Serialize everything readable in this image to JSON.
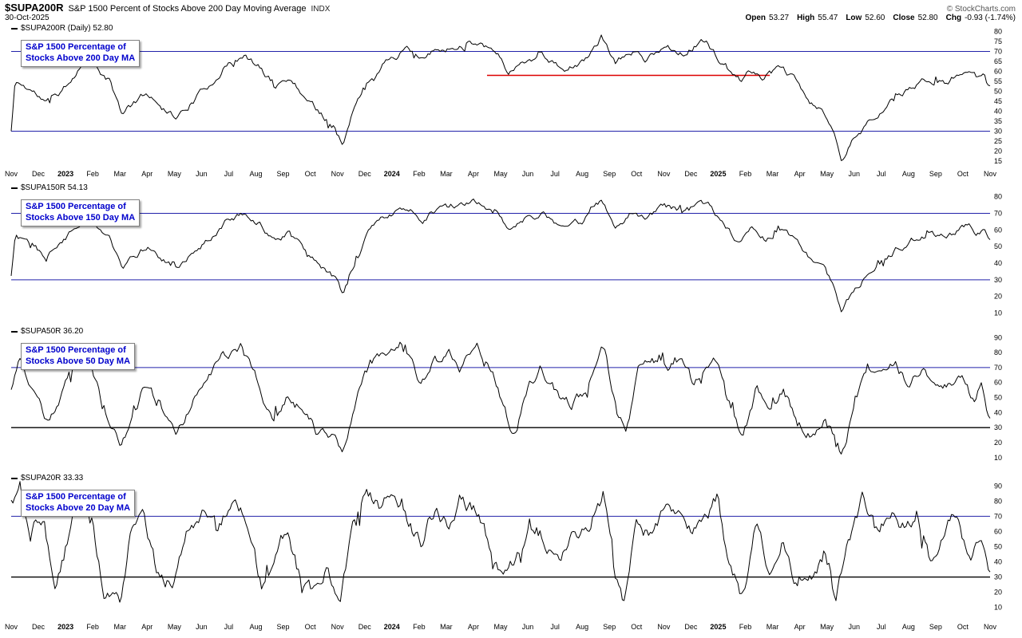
{
  "header": {
    "symbol": "$SUPA200R",
    "title": "S&P 1500 Percent of Stocks Above 200 Day Moving Average",
    "exchange": "INDX",
    "copyright": "© StockCharts.com",
    "date": "30-Oct-2025",
    "quote": {
      "open_label": "Open",
      "open": "53.27",
      "high_label": "High",
      "high": "55.47",
      "low_label": "Low",
      "low": "52.60",
      "close_label": "Close",
      "close": "52.80",
      "chg_label": "Chg",
      "chg": "-0.93 (-1.74%)"
    }
  },
  "axis": {
    "months": [
      "Nov",
      "Dec",
      "2023",
      "Feb",
      "Mar",
      "Apr",
      "May",
      "Jun",
      "Jul",
      "Aug",
      "Sep",
      "Oct",
      "Nov",
      "Dec",
      "2024",
      "Feb",
      "Mar",
      "Apr",
      "May",
      "Jun",
      "Jul",
      "Aug",
      "Sep",
      "Oct",
      "Nov",
      "Dec",
      "2025",
      "Feb",
      "Mar",
      "Apr",
      "May",
      "Jun",
      "Jul",
      "Aug",
      "Sep",
      "Oct",
      "Nov"
    ],
    "year_indices": [
      2,
      14,
      26
    ],
    "x_range": [
      "Nov-2022",
      "Nov-2025"
    ]
  },
  "chart_data": [
    {
      "type": "line",
      "id": "supa200r",
      "label": "$SUPA200R (Daily) 52.80",
      "annotation": [
        "S&P 1500 Percentage of",
        "Stocks Above 200 Day MA"
      ],
      "close": 52.8,
      "ylim": [
        13,
        83
      ],
      "yticks": [
        80,
        75,
        70,
        65,
        60,
        55,
        50,
        45,
        40,
        35,
        30,
        25,
        20,
        15
      ],
      "gridlines": [
        {
          "value": 70,
          "color": "#2222aa",
          "width": 1
        },
        {
          "value": 30,
          "color": "#2222aa",
          "width": 1
        }
      ],
      "red_line": {
        "value": 58,
        "x_start_month": 17.5,
        "x_end_month": 27.9,
        "color": "#dd0000"
      },
      "line_color": "#000000",
      "noise_amp": 2.6,
      "seed": 11,
      "anchors": [
        [
          0,
          30
        ],
        [
          0.15,
          55
        ],
        [
          0.8,
          50
        ],
        [
          1.3,
          44
        ],
        [
          1.8,
          50
        ],
        [
          2.6,
          63
        ],
        [
          2.9,
          69
        ],
        [
          3.2,
          60
        ],
        [
          3.6,
          55
        ],
        [
          4.1,
          38
        ],
        [
          4.5,
          44
        ],
        [
          5.0,
          49
        ],
        [
          5.5,
          44
        ],
        [
          6.1,
          37
        ],
        [
          6.6,
          44
        ],
        [
          7.2,
          52
        ],
        [
          7.9,
          63
        ],
        [
          8.6,
          67
        ],
        [
          9.2,
          61
        ],
        [
          9.7,
          53
        ],
        [
          10.2,
          57
        ],
        [
          10.8,
          48
        ],
        [
          11.3,
          40
        ],
        [
          11.9,
          33
        ],
        [
          12.2,
          23
        ],
        [
          12.6,
          40
        ],
        [
          13.1,
          55
        ],
        [
          13.9,
          67
        ],
        [
          14.6,
          71
        ],
        [
          15.1,
          65
        ],
        [
          15.6,
          70
        ],
        [
          16.4,
          73
        ],
        [
          17.2,
          75
        ],
        [
          17.8,
          71
        ],
        [
          18.3,
          60
        ],
        [
          18.9,
          65
        ],
        [
          19.5,
          69
        ],
        [
          20.3,
          61
        ],
        [
          21.0,
          64
        ],
        [
          21.7,
          77
        ],
        [
          22.2,
          64
        ],
        [
          22.9,
          71
        ],
        [
          23.4,
          66
        ],
        [
          24.0,
          73
        ],
        [
          24.7,
          70
        ],
        [
          25.3,
          74
        ],
        [
          25.6,
          75
        ],
        [
          26.2,
          63
        ],
        [
          26.8,
          55
        ],
        [
          27.2,
          61
        ],
        [
          27.7,
          57
        ],
        [
          28.2,
          61
        ],
        [
          28.8,
          56
        ],
        [
          29.4,
          44
        ],
        [
          29.9,
          39
        ],
        [
          30.2,
          31
        ],
        [
          30.55,
          16
        ],
        [
          30.9,
          24
        ],
        [
          31.4,
          33
        ],
        [
          31.9,
          40
        ],
        [
          32.6,
          47
        ],
        [
          33.3,
          53
        ],
        [
          33.9,
          57
        ],
        [
          34.4,
          54
        ],
        [
          34.9,
          59
        ],
        [
          35.2,
          62
        ],
        [
          35.5,
          57
        ],
        [
          35.8,
          60
        ],
        [
          36,
          52.8
        ]
      ]
    },
    {
      "type": "line",
      "id": "supa150r",
      "label": "$SUPA150R 54.13",
      "annotation": [
        "S&P 1500 Percentage of",
        "Stocks Above 150 Day MA"
      ],
      "close": 54.13,
      "ylim": [
        5,
        87
      ],
      "yticks": [
        80,
        70,
        60,
        50,
        40,
        30,
        20,
        10
      ],
      "gridlines": [
        {
          "value": 70,
          "color": "#2222aa",
          "width": 1
        },
        {
          "value": 30,
          "color": "#2222aa",
          "width": 1
        }
      ],
      "line_color": "#000000",
      "noise_amp": 3.0,
      "seed": 22,
      "anchors": [
        [
          0,
          32
        ],
        [
          0.15,
          58
        ],
        [
          0.8,
          52
        ],
        [
          1.3,
          45
        ],
        [
          1.8,
          52
        ],
        [
          2.6,
          66
        ],
        [
          2.9,
          71
        ],
        [
          3.2,
          62
        ],
        [
          3.6,
          57
        ],
        [
          4.1,
          37
        ],
        [
          4.5,
          44
        ],
        [
          5.0,
          50
        ],
        [
          5.5,
          44
        ],
        [
          6.1,
          36
        ],
        [
          6.6,
          44
        ],
        [
          7.2,
          54
        ],
        [
          7.9,
          66
        ],
        [
          8.6,
          70
        ],
        [
          9.2,
          63
        ],
        [
          9.7,
          53
        ],
        [
          10.2,
          58
        ],
        [
          10.8,
          47
        ],
        [
          11.3,
          38
        ],
        [
          11.9,
          30
        ],
        [
          12.2,
          20
        ],
        [
          12.6,
          39
        ],
        [
          13.1,
          57
        ],
        [
          13.9,
          70
        ],
        [
          14.6,
          74
        ],
        [
          15.1,
          66
        ],
        [
          15.6,
          71
        ],
        [
          16.4,
          75
        ],
        [
          17.2,
          77
        ],
        [
          17.8,
          72
        ],
        [
          18.3,
          60
        ],
        [
          18.9,
          66
        ],
        [
          19.5,
          70
        ],
        [
          20.3,
          61
        ],
        [
          21.0,
          65
        ],
        [
          21.7,
          79
        ],
        [
          22.2,
          63
        ],
        [
          22.9,
          72
        ],
        [
          23.4,
          66
        ],
        [
          24.0,
          74
        ],
        [
          24.7,
          71
        ],
        [
          25.3,
          75
        ],
        [
          25.6,
          76
        ],
        [
          26.2,
          62
        ],
        [
          26.8,
          53
        ],
        [
          27.2,
          60
        ],
        [
          27.7,
          55
        ],
        [
          28.2,
          60
        ],
        [
          28.8,
          54
        ],
        [
          29.4,
          41
        ],
        [
          29.9,
          36
        ],
        [
          30.2,
          27
        ],
        [
          30.55,
          11
        ],
        [
          30.9,
          21
        ],
        [
          31.4,
          32
        ],
        [
          31.9,
          41
        ],
        [
          32.6,
          49
        ],
        [
          33.3,
          55
        ],
        [
          33.9,
          59
        ],
        [
          34.4,
          55
        ],
        [
          34.9,
          61
        ],
        [
          35.2,
          64
        ],
        [
          35.5,
          58
        ],
        [
          35.8,
          61
        ],
        [
          36,
          54.13
        ]
      ]
    },
    {
      "type": "line",
      "id": "supa50r",
      "label": "$SUPA50R 36.20",
      "annotation": [
        "S&P 1500 Percentage of",
        "Stocks Above 50 Day MA"
      ],
      "close": 36.2,
      "ylim": [
        3,
        96
      ],
      "yticks": [
        90,
        80,
        70,
        60,
        50,
        40,
        30,
        20,
        10
      ],
      "gridlines": [
        {
          "value": 70,
          "color": "#2222aa",
          "width": 1
        },
        {
          "value": 30,
          "color": "#000000",
          "width": 1.4
        }
      ],
      "line_color": "#000000",
      "noise_amp": 5.5,
      "seed": 33,
      "anchors": [
        [
          0,
          55
        ],
        [
          0.3,
          72
        ],
        [
          0.8,
          55
        ],
        [
          1.4,
          30
        ],
        [
          1.9,
          52
        ],
        [
          2.5,
          76
        ],
        [
          2.9,
          70
        ],
        [
          3.4,
          42
        ],
        [
          4.0,
          17
        ],
        [
          4.5,
          40
        ],
        [
          5.0,
          58
        ],
        [
          5.6,
          38
        ],
        [
          6.1,
          26
        ],
        [
          6.7,
          47
        ],
        [
          7.3,
          68
        ],
        [
          8.0,
          80
        ],
        [
          8.5,
          84
        ],
        [
          9.1,
          58
        ],
        [
          9.6,
          33
        ],
        [
          10.2,
          52
        ],
        [
          10.7,
          42
        ],
        [
          11.2,
          28
        ],
        [
          11.9,
          22
        ],
        [
          12.2,
          12
        ],
        [
          12.7,
          48
        ],
        [
          13.2,
          72
        ],
        [
          13.9,
          84
        ],
        [
          14.4,
          87
        ],
        [
          15.0,
          60
        ],
        [
          15.5,
          72
        ],
        [
          16.1,
          78
        ],
        [
          16.6,
          72
        ],
        [
          17.1,
          84
        ],
        [
          17.7,
          68
        ],
        [
          18.2,
          38
        ],
        [
          18.5,
          25
        ],
        [
          19.0,
          56
        ],
        [
          19.5,
          70
        ],
        [
          20.1,
          52
        ],
        [
          20.6,
          44
        ],
        [
          21.2,
          58
        ],
        [
          21.8,
          84
        ],
        [
          22.3,
          38
        ],
        [
          22.6,
          27
        ],
        [
          23.1,
          70
        ],
        [
          23.6,
          76
        ],
        [
          24.1,
          68
        ],
        [
          24.6,
          76
        ],
        [
          25.1,
          58
        ],
        [
          25.6,
          72
        ],
        [
          26.0,
          74
        ],
        [
          26.5,
          42
        ],
        [
          26.9,
          20
        ],
        [
          27.4,
          55
        ],
        [
          27.9,
          43
        ],
        [
          28.4,
          55
        ],
        [
          28.9,
          34
        ],
        [
          29.4,
          25
        ],
        [
          29.9,
          37
        ],
        [
          30.3,
          22
        ],
        [
          30.55,
          8
        ],
        [
          31.0,
          45
        ],
        [
          31.5,
          70
        ],
        [
          32.0,
          62
        ],
        [
          32.5,
          72
        ],
        [
          33.0,
          58
        ],
        [
          33.5,
          70
        ],
        [
          34.0,
          52
        ],
        [
          34.5,
          56
        ],
        [
          35.0,
          68
        ],
        [
          35.4,
          48
        ],
        [
          35.7,
          58
        ],
        [
          36,
          36.2
        ]
      ]
    },
    {
      "type": "line",
      "id": "supa20r",
      "label": "$SUPA20R 33.33",
      "annotation": [
        "S&P 1500 Percentage of",
        "Stocks Above 20 Day MA"
      ],
      "close": 33.33,
      "ylim": [
        3,
        97
      ],
      "yticks": [
        90,
        80,
        70,
        60,
        50,
        40,
        30,
        20,
        10
      ],
      "gridlines": [
        {
          "value": 70,
          "color": "#2222aa",
          "width": 1
        },
        {
          "value": 30,
          "color": "#000000",
          "width": 1.4
        }
      ],
      "line_color": "#000000",
      "noise_amp": 8.0,
      "seed": 44,
      "anchors": [
        [
          0,
          78
        ],
        [
          0.3,
          88
        ],
        [
          0.7,
          58
        ],
        [
          1.2,
          72
        ],
        [
          1.6,
          18
        ],
        [
          2.1,
          55
        ],
        [
          2.5,
          84
        ],
        [
          3.0,
          62
        ],
        [
          3.4,
          22
        ],
        [
          4.0,
          14
        ],
        [
          4.4,
          62
        ],
        [
          4.9,
          70
        ],
        [
          5.4,
          30
        ],
        [
          6.0,
          24
        ],
        [
          6.5,
          58
        ],
        [
          7.1,
          76
        ],
        [
          7.6,
          55
        ],
        [
          8.1,
          80
        ],
        [
          8.7,
          62
        ],
        [
          9.2,
          26
        ],
        [
          9.7,
          38
        ],
        [
          10.2,
          58
        ],
        [
          10.6,
          30
        ],
        [
          11.1,
          20
        ],
        [
          11.6,
          34
        ],
        [
          12.1,
          10
        ],
        [
          12.6,
          62
        ],
        [
          13.1,
          85
        ],
        [
          13.6,
          72
        ],
        [
          14.1,
          88
        ],
        [
          14.6,
          66
        ],
        [
          15.1,
          52
        ],
        [
          15.6,
          76
        ],
        [
          16.1,
          64
        ],
        [
          16.6,
          80
        ],
        [
          17.1,
          72
        ],
        [
          17.6,
          50
        ],
        [
          18.1,
          24
        ],
        [
          18.6,
          40
        ],
        [
          19.1,
          70
        ],
        [
          19.6,
          56
        ],
        [
          20.1,
          38
        ],
        [
          20.7,
          58
        ],
        [
          21.3,
          68
        ],
        [
          21.8,
          86
        ],
        [
          22.2,
          34
        ],
        [
          22.5,
          13
        ],
        [
          23.0,
          74
        ],
        [
          23.5,
          58
        ],
        [
          24.0,
          72
        ],
        [
          24.5,
          76
        ],
        [
          25.0,
          52
        ],
        [
          25.5,
          66
        ],
        [
          26.0,
          82
        ],
        [
          26.4,
          38
        ],
        [
          26.9,
          14
        ],
        [
          27.4,
          62
        ],
        [
          27.9,
          34
        ],
        [
          28.4,
          56
        ],
        [
          28.9,
          24
        ],
        [
          29.4,
          32
        ],
        [
          29.9,
          44
        ],
        [
          30.3,
          12
        ],
        [
          30.8,
          55
        ],
        [
          31.3,
          82
        ],
        [
          31.8,
          58
        ],
        [
          32.3,
          76
        ],
        [
          32.8,
          66
        ],
        [
          33.3,
          74
        ],
        [
          33.8,
          42
        ],
        [
          34.3,
          62
        ],
        [
          34.8,
          72
        ],
        [
          35.3,
          34
        ],
        [
          35.7,
          58
        ],
        [
          36,
          33.33
        ]
      ]
    }
  ]
}
